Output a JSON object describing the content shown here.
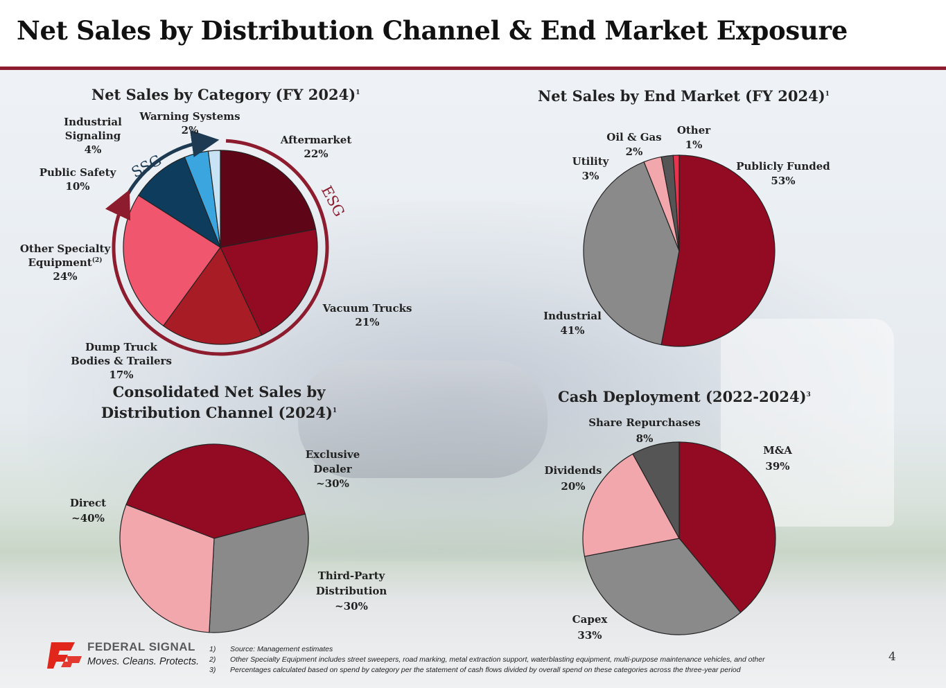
{
  "page": {
    "title": "Net Sales by Distribution Channel & End Market Exposure",
    "page_number": "4"
  },
  "colors": {
    "accent": "#8c1c2e",
    "dark_red": "#5e0617",
    "red": "#930b22",
    "mid_red": "#a81d25",
    "pink": "#f0566e",
    "navy": "#0e3c5c",
    "sky": "#3aa5de",
    "pale_blue": "#c7e3f4",
    "gray": "#8a8a8a",
    "light_pink": "#f2a7ad",
    "dark_gray": "#555555"
  },
  "chart_data": [
    {
      "id": "category",
      "type": "pie",
      "title": "Net Sales by Category (FY 2024)",
      "title_sup": "1",
      "slices": [
        {
          "label": "Aftermarket",
          "value": 22,
          "value_label": "22%",
          "color": "#5e0617"
        },
        {
          "label": "Vacuum Trucks",
          "value": 21,
          "value_label": "21%",
          "color": "#930b22"
        },
        {
          "label": "Dump Truck Bodies & Trailers",
          "value": 17,
          "value_label": "17%",
          "color": "#a81d25"
        },
        {
          "label": "Other Specialty Equipment",
          "label_sup": "(2)",
          "value": 24,
          "value_label": "24%",
          "color": "#f0566e"
        },
        {
          "label": "Public Safety",
          "value": 10,
          "value_label": "10%",
          "color": "#0e3c5c"
        },
        {
          "label": "Industrial Signaling",
          "value": 4,
          "value_label": "4%",
          "color": "#3aa5de"
        },
        {
          "label": "Warning Systems",
          "value": 2,
          "value_label": "2%",
          "color": "#c7e3f4"
        }
      ],
      "groups": [
        {
          "name": "ESG",
          "color": "#8c1c2e"
        },
        {
          "name": "SSG",
          "color": "#1d3a52"
        }
      ]
    },
    {
      "id": "end_market",
      "type": "pie",
      "title": "Net Sales by End Market (FY 2024)",
      "title_sup": "1",
      "slices": [
        {
          "label": "Publicly Funded",
          "value": 53,
          "value_label": "53%",
          "color": "#930b22"
        },
        {
          "label": "Industrial",
          "value": 41,
          "value_label": "41%",
          "color": "#8a8a8a"
        },
        {
          "label": "Utility",
          "value": 3,
          "value_label": "3%",
          "color": "#f2a7ad"
        },
        {
          "label": "Oil & Gas",
          "value": 2,
          "value_label": "2%",
          "color": "#555555"
        },
        {
          "label": "Other",
          "value": 1,
          "value_label": "1%",
          "color": "#e8334e"
        }
      ]
    },
    {
      "id": "channel",
      "type": "pie",
      "title_line1": "Consolidated Net Sales by",
      "title_line2": "Distribution Channel (2024)",
      "title_sup": "1",
      "slices": [
        {
          "label_line1": "Exclusive",
          "label_line2": "Dealer",
          "value": 30,
          "value_label": "~30%",
          "color": "#8a8a8a"
        },
        {
          "label_line1": "Third-Party",
          "label_line2": "Distribution",
          "value": 30,
          "value_label": "~30%",
          "color": "#f2a7ad"
        },
        {
          "label_line1": "Direct",
          "label_line2": "",
          "value": 40,
          "value_label": "~40%",
          "color": "#930b22"
        }
      ]
    },
    {
      "id": "cash",
      "type": "pie",
      "title": "Cash Deployment (2022-2024)",
      "title_sup": "3",
      "slices": [
        {
          "label": "M&A",
          "value": 39,
          "value_label": "39%",
          "color": "#930b22"
        },
        {
          "label": "Capex",
          "value": 33,
          "value_label": "33%",
          "color": "#8a8a8a"
        },
        {
          "label": "Dividends",
          "value": 20,
          "value_label": "20%",
          "color": "#f2a7ad"
        },
        {
          "label": "Share Repurchases",
          "value": 8,
          "value_label": "8%",
          "color": "#555555"
        }
      ]
    }
  ],
  "footer": {
    "logo_name": "FEDERAL SIGNAL",
    "logo_tagline": "Moves. Cleans. Protects.",
    "footnotes": [
      {
        "num": "1)",
        "text": "Source: Management estimates"
      },
      {
        "num": "2)",
        "text": "Other Specialty Equipment includes street sweepers, road marking, metal extraction support, waterblasting equipment, multi-purpose maintenance vehicles, and other"
      },
      {
        "num": "3)",
        "text": "Percentages calculated based on spend by category per the statement of cash flows divided by overall spend on these categories across the three-year period"
      }
    ]
  }
}
